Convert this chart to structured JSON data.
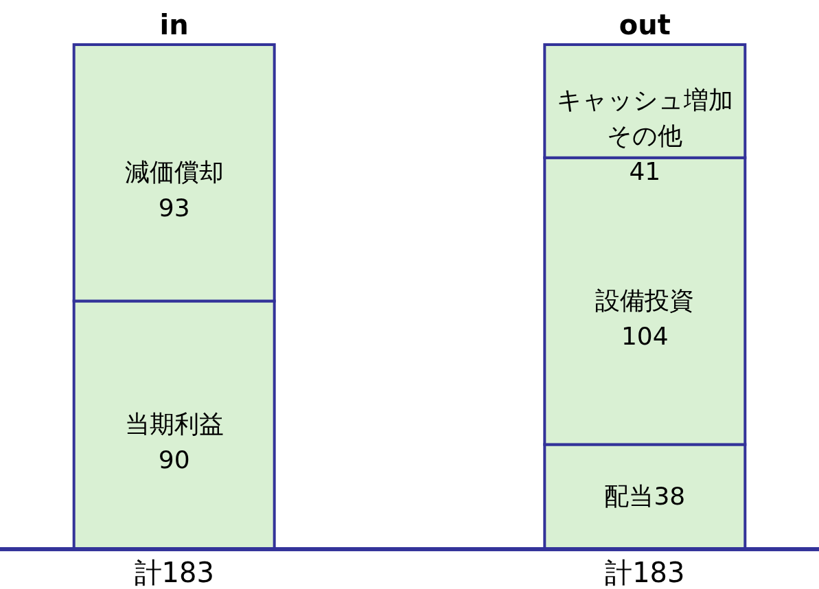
{
  "chart_data": {
    "type": "bar",
    "stacked": true,
    "categories": [
      "in",
      "out"
    ],
    "tick_labels": "x",
    "series": [
      {
        "color": "#d9f0d3",
        "values": [
          90,
          38
        ],
        "value_labels": [
          "当期利益90",
          "配当38"
        ]
      },
      {
        "color": "#d9f0d3",
        "values": [
          93,
          104
        ],
        "value_labels": [
          "減価償却93",
          "設備投資104"
        ]
      },
      {
        "color": "#d9f0d3",
        "values": [
          null,
          41
        ],
        "value_labels": [
          null,
          "キャッシュ増加その他41"
        ]
      }
    ],
    "totals": [
      "計183",
      "計183"
    ]
  }
}
